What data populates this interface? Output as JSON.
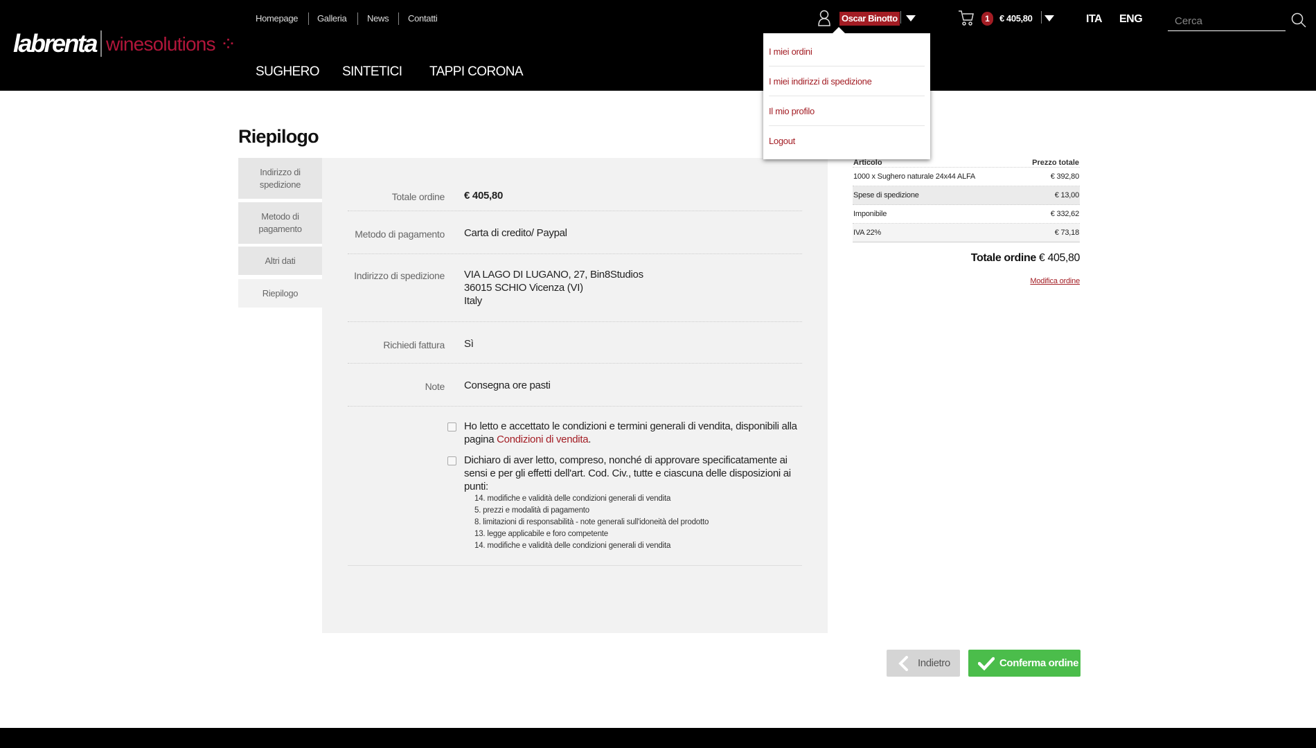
{
  "header": {
    "logo_text": "labrenta winesolutions",
    "top_links": [
      "Homepage",
      "Galleria",
      "News",
      "Contatti"
    ],
    "main_nav": [
      "SUGHERO",
      "SINTETICI",
      "TAPPI CORONA"
    ],
    "user_name": "Oscar Binotto",
    "cart_count": "1",
    "cart_total": "€ 405,80",
    "languages": [
      "ITA",
      "ENG"
    ],
    "search_placeholder": "Cerca"
  },
  "user_menu": [
    "I miei ordini",
    "I miei indirizzi di spedizione",
    "Il mio profilo",
    "Logout"
  ],
  "page_title": "Riepilogo",
  "steps": [
    "Indirizzo di spedizione",
    "Metodo di pagamento",
    "Altri dati",
    "Riepilogo"
  ],
  "active_step": "Riepilogo",
  "summary": {
    "total_label": "Totale ordine",
    "total_value": "€ 405,80",
    "payment_label": "Metodo di pagamento",
    "payment_value": "Carta di credito/ Paypal",
    "address_label": "Indirizzo di spedizione",
    "address_lines": [
      "VIA LAGO DI LUGANO, 27, Bin8Studios",
      "36015 SCHIO Vicenza (VI)",
      "Italy"
    ],
    "invoice_label": "Richiedi fattura",
    "invoice_value": "Sì",
    "notes_label": "Note",
    "notes_value": "Consegna ore pasti"
  },
  "terms": {
    "check1_text": "Ho letto e accettato le condizioni e termini generali di vendita, disponibili alla pagina ",
    "check1_link": "Condizioni di vendita",
    "check1_end": ".",
    "check2_text": "Dichiaro di aver letto, compreso, nonché di approvare specificatamente ai sensi e per gli effetti dell'art. Cod. Civ., tutte e ciascuna delle disposizioni ai punti:",
    "points": [
      "14. modifiche e validità delle condizioni generali di vendita",
      "5. prezzi e modalità di pagamento",
      "8. limitazioni di responsabilità - note generali sull'idoneità del prodotto",
      "13. legge applicabile e foro competente",
      "14. modifiche e validità delle condizioni generali di vendita"
    ]
  },
  "cart_table": {
    "headers": [
      "Articolo",
      "Prezzo totale"
    ],
    "rows": [
      {
        "item": "1000 x Sughero naturale 24x44 ALFA",
        "price": "€ 392,80"
      },
      {
        "item": "Spese di spedizione",
        "price": "€ 13,00"
      },
      {
        "item": "Imponibile",
        "price": "€ 332,62"
      },
      {
        "item": "IVA 22%",
        "price": "€ 73,18"
      }
    ],
    "total_label": "Totale ordine",
    "total_value": "€ 405,80",
    "edit_link": "Modifica ordine"
  },
  "buttons": {
    "back": "Indietro",
    "confirm": "Conferma ordine"
  },
  "colors": {
    "brand_red": "#a31d24",
    "confirm_green": "#4bbd4b"
  }
}
